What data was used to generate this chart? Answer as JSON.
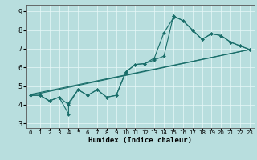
{
  "xlabel": "Humidex (Indice chaleur)",
  "bg_color": "#b8dede",
  "grid_color": "#d4eeee",
  "line_color": "#1a6e6a",
  "xlim": [
    -0.5,
    23.5
  ],
  "ylim": [
    2.75,
    9.35
  ],
  "xticks": [
    0,
    1,
    2,
    3,
    4,
    5,
    6,
    7,
    8,
    9,
    10,
    11,
    12,
    13,
    14,
    15,
    16,
    17,
    18,
    19,
    20,
    21,
    22,
    23
  ],
  "yticks": [
    3,
    4,
    5,
    6,
    7,
    8,
    9
  ],
  "line1_x": [
    0,
    1,
    2,
    3,
    4,
    4,
    5,
    6,
    7,
    8,
    9,
    10,
    11,
    12,
    13,
    14,
    15,
    15,
    16,
    17,
    18,
    19,
    20,
    21,
    22,
    23
  ],
  "line1_y": [
    4.5,
    4.5,
    4.2,
    4.4,
    3.5,
    4.1,
    4.8,
    4.5,
    4.8,
    4.4,
    4.5,
    5.75,
    6.15,
    6.2,
    6.5,
    7.85,
    8.65,
    8.75,
    8.5,
    8.0,
    7.5,
    7.8,
    7.7,
    7.35,
    7.15,
    6.95
  ],
  "line2_x": [
    0,
    1,
    2,
    3,
    4,
    5,
    6,
    7,
    8,
    9,
    10,
    11,
    12,
    13,
    14,
    15,
    16,
    17,
    18,
    19,
    20,
    21,
    22,
    23
  ],
  "line2_y": [
    4.5,
    4.5,
    4.2,
    4.4,
    4.0,
    4.8,
    4.5,
    4.8,
    4.4,
    4.5,
    5.75,
    6.15,
    6.2,
    6.4,
    6.6,
    8.75,
    8.5,
    8.0,
    7.5,
    7.8,
    7.7,
    7.35,
    7.15,
    6.95
  ],
  "trend1_x": [
    0,
    23
  ],
  "trend1_y": [
    4.5,
    6.95
  ],
  "trend2_x": [
    0,
    23
  ],
  "trend2_y": [
    4.5,
    6.95
  ]
}
